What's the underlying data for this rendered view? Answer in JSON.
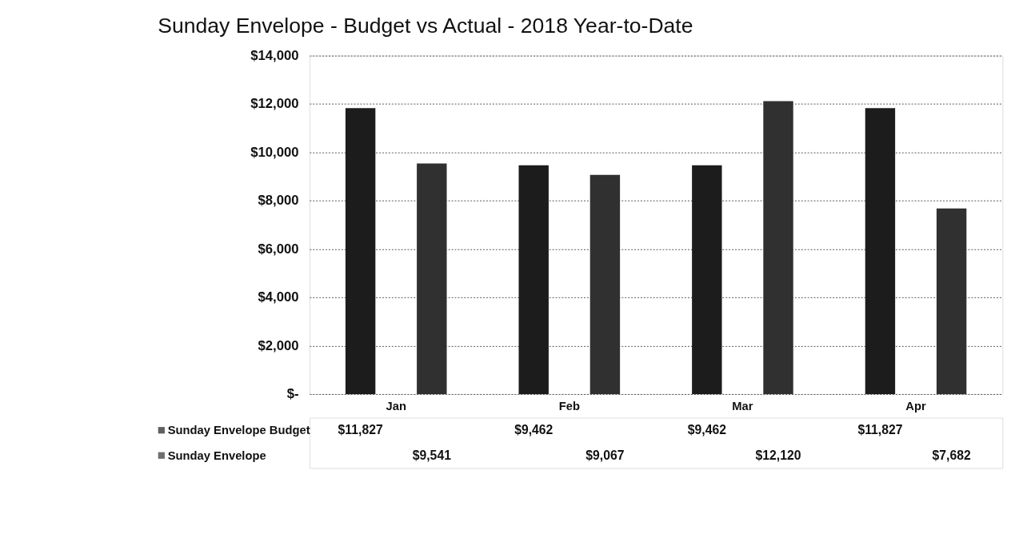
{
  "chart_data": {
    "type": "bar",
    "title": "Sunday Envelope - Budget vs Actual - 2018 Year-to-Date",
    "categories": [
      "Jan",
      "Feb",
      "Mar",
      "Apr"
    ],
    "series": [
      {
        "name": "Sunday Envelope Budget",
        "color": "#1c1c1c",
        "values": [
          11827,
          9462,
          9462,
          11827
        ],
        "value_labels": [
          "$11,827",
          "$9,462",
          "$9,462",
          "$11,827"
        ]
      },
      {
        "name": "Sunday Envelope",
        "color": "#303030",
        "values": [
          9541,
          9067,
          12120,
          7682
        ],
        "value_labels": [
          "$9,541",
          "$9,067",
          "$12,120",
          "$7,682"
        ]
      }
    ],
    "ylim": [
      0,
      14000
    ],
    "yticks": [
      {
        "value": 0,
        "label": "$-"
      },
      {
        "value": 2000,
        "label": "$2,000"
      },
      {
        "value": 4000,
        "label": "$4,000"
      },
      {
        "value": 6000,
        "label": "$6,000"
      },
      {
        "value": 8000,
        "label": "$8,000"
      },
      {
        "value": 10000,
        "label": "$10,000"
      },
      {
        "value": 12000,
        "label": "$12,000"
      },
      {
        "value": 14000,
        "label": "$14,000"
      }
    ],
    "grid": "y",
    "legend": "bottom left"
  }
}
